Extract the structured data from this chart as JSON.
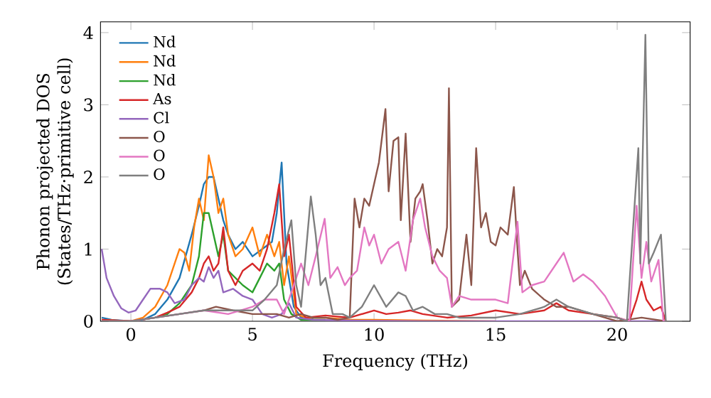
{
  "chart_data": {
    "type": "line",
    "xlabel": "Frequency (THz)",
    "ylabel": "Phonon projected DOS (States/THz·primitive cell)",
    "xlim": [
      -1.25,
      23
    ],
    "ylim": [
      0,
      4.15
    ],
    "xticks": [
      0,
      5,
      10,
      15,
      20
    ],
    "yticks": [
      0,
      1,
      2,
      3,
      4
    ],
    "grid": false,
    "legend": "top left",
    "marker": "none",
    "line_style": "solid",
    "series": [
      {
        "name": "Nd",
        "color": "#1f77b4",
        "x": [
          -1.2,
          -0.8,
          0,
          0.5,
          1.0,
          1.5,
          2.0,
          2.5,
          2.8,
          3.0,
          3.2,
          3.4,
          3.6,
          3.8,
          4.0,
          4.3,
          4.6,
          5.0,
          5.4,
          5.8,
          6.0,
          6.2,
          6.4,
          6.7,
          7.0,
          7.5
        ],
        "values": [
          0.05,
          0.02,
          0.0,
          0.02,
          0.1,
          0.3,
          0.6,
          1.2,
          1.6,
          1.9,
          2.0,
          2.0,
          1.7,
          1.4,
          1.2,
          1.0,
          1.1,
          0.9,
          1.0,
          1.1,
          1.5,
          2.2,
          0.8,
          0.2,
          0.05,
          0.03
        ]
      },
      {
        "name": "Nd",
        "color": "#ff7f0e",
        "x": [
          -1.2,
          0,
          0.5,
          1.0,
          1.5,
          2.0,
          2.2,
          2.4,
          2.6,
          2.8,
          3.0,
          3.2,
          3.4,
          3.6,
          3.8,
          4.0,
          4.3,
          4.6,
          5.0,
          5.3,
          5.6,
          5.9,
          6.1,
          6.3,
          6.5,
          6.8,
          7.2,
          8,
          9,
          10,
          12,
          15
        ],
        "values": [
          0.02,
          0.0,
          0.05,
          0.2,
          0.5,
          1.0,
          0.95,
          0.7,
          1.3,
          1.7,
          1.4,
          2.3,
          2.0,
          1.5,
          1.7,
          1.2,
          0.9,
          1.0,
          1.3,
          0.9,
          1.2,
          0.9,
          1.1,
          0.5,
          0.9,
          0.1,
          0.05,
          0.05,
          0.02,
          0.02,
          0.01,
          0.0
        ]
      },
      {
        "name": "Nd",
        "color": "#2ca02c",
        "x": [
          1,
          1.5,
          2.0,
          2.5,
          2.8,
          3.0,
          3.2,
          3.4,
          3.6,
          3.8,
          4.0,
          4.3,
          4.6,
          5.0,
          5.3,
          5.6,
          5.9,
          6.1,
          6.3,
          6.6,
          7,
          8
        ],
        "values": [
          0.05,
          0.1,
          0.25,
          0.5,
          0.9,
          1.5,
          1.5,
          1.2,
          0.9,
          1.2,
          0.7,
          0.6,
          0.5,
          0.4,
          0.6,
          0.8,
          0.7,
          0.8,
          0.3,
          0.1,
          0.02,
          0.02
        ]
      },
      {
        "name": "As",
        "color": "#d62728",
        "x": [
          -1.2,
          0,
          1,
          1.5,
          2.0,
          2.5,
          2.8,
          3.0,
          3.2,
          3.4,
          3.6,
          3.8,
          4.0,
          4.3,
          4.6,
          5.0,
          5.3,
          5.6,
          5.9,
          6.1,
          6.3,
          6.5,
          6.8,
          7.2,
          8,
          9,
          10,
          10.5,
          11,
          11.5,
          12,
          13,
          14,
          15,
          16,
          17,
          17.5,
          18,
          19,
          20,
          20.5,
          20.8,
          21.0,
          21.2,
          21.5,
          21.8,
          22
        ],
        "values": [
          0.02,
          0.0,
          0.05,
          0.12,
          0.2,
          0.4,
          0.6,
          0.8,
          0.9,
          0.7,
          0.8,
          1.3,
          0.7,
          0.5,
          0.7,
          0.8,
          0.7,
          1.0,
          1.5,
          1.9,
          0.9,
          1.2,
          0.2,
          0.05,
          0.08,
          0.05,
          0.15,
          0.1,
          0.12,
          0.15,
          0.1,
          0.05,
          0.08,
          0.15,
          0.1,
          0.15,
          0.25,
          0.15,
          0.1,
          0.05,
          0.0,
          0.3,
          0.55,
          0.3,
          0.15,
          0.2,
          0.0
        ]
      },
      {
        "name": "Cl",
        "color": "#9467bd",
        "x": [
          -1.2,
          -1.0,
          -0.7,
          -0.4,
          -0.1,
          0.2,
          0.5,
          0.8,
          1.2,
          1.5,
          1.8,
          2.2,
          2.5,
          2.8,
          3.0,
          3.2,
          3.4,
          3.6,
          3.8,
          4.2,
          4.6,
          5.0,
          5.4,
          5.8,
          6.2,
          6.5,
          6.8,
          7.5,
          9,
          12,
          22
        ],
        "values": [
          1.0,
          0.6,
          0.35,
          0.18,
          0.12,
          0.15,
          0.3,
          0.45,
          0.45,
          0.4,
          0.25,
          0.3,
          0.5,
          0.6,
          0.55,
          0.75,
          0.6,
          0.7,
          0.4,
          0.45,
          0.35,
          0.3,
          0.1,
          0.05,
          0.1,
          0.25,
          0.05,
          0.02,
          0.01,
          0.0,
          0.0
        ]
      },
      {
        "name": "O",
        "color": "#8c564b",
        "x": [
          -1.2,
          0,
          1,
          2,
          3,
          3.5,
          4.2,
          5,
          5.5,
          6,
          6.5,
          7,
          7.5,
          8.0,
          8.5,
          9.0,
          9.2,
          9.4,
          9.6,
          9.8,
          10.0,
          10.2,
          10.47,
          10.6,
          10.8,
          11.0,
          11.1,
          11.3,
          11.5,
          11.7,
          11.9,
          12.0,
          12.2,
          12.4,
          12.6,
          12.8,
          13.0,
          13.08,
          13.2,
          13.5,
          13.8,
          14.0,
          14.2,
          14.4,
          14.6,
          14.8,
          15.0,
          15.2,
          15.5,
          15.75,
          15.9,
          16.0,
          16.2,
          16.5,
          17,
          17.5,
          18,
          18.5,
          19,
          19.5,
          20,
          21,
          22
        ],
        "values": [
          0.0,
          0.0,
          0.05,
          0.1,
          0.15,
          0.2,
          0.15,
          0.1,
          0.1,
          0.1,
          0.05,
          0.1,
          0.05,
          0.05,
          0.02,
          0.05,
          1.7,
          1.3,
          1.7,
          1.6,
          1.9,
          2.2,
          2.94,
          1.8,
          2.5,
          2.55,
          1.4,
          2.6,
          1.1,
          1.7,
          1.8,
          1.9,
          1.4,
          0.8,
          1.0,
          0.9,
          1.3,
          3.23,
          0.2,
          0.3,
          1.2,
          0.5,
          2.4,
          1.3,
          1.5,
          1.1,
          1.05,
          1.3,
          1.2,
          1.86,
          1.0,
          0.5,
          0.7,
          0.45,
          0.3,
          0.2,
          0.2,
          0.15,
          0.1,
          0.05,
          0.0,
          0.05,
          0.0
        ]
      },
      {
        "name": "O",
        "color": "#e377c2",
        "x": [
          -1.2,
          0,
          1,
          2,
          3,
          4,
          4.5,
          5.0,
          5.5,
          6,
          6.3,
          6.6,
          7.0,
          7.3,
          7.6,
          7.97,
          8.2,
          8.5,
          8.8,
          9.0,
          9.3,
          9.6,
          9.8,
          10.0,
          10.3,
          10.6,
          11.0,
          11.3,
          11.6,
          11.9,
          12.1,
          12.4,
          12.7,
          13.0,
          13.2,
          13.5,
          14.0,
          14.5,
          15.0,
          15.5,
          15.9,
          16.1,
          16.5,
          17,
          17.5,
          17.8,
          18.2,
          18.6,
          19.0,
          19.5,
          20,
          20.5,
          20.8,
          21.0,
          21.2,
          21.4,
          21.7,
          21.9,
          22
        ],
        "values": [
          0.0,
          0.0,
          0.05,
          0.1,
          0.15,
          0.1,
          0.15,
          0.2,
          0.3,
          0.3,
          0.1,
          0.4,
          0.8,
          0.5,
          0.9,
          1.42,
          0.6,
          0.75,
          0.5,
          0.6,
          0.7,
          1.3,
          1.05,
          1.2,
          0.8,
          1.0,
          1.1,
          0.7,
          1.4,
          1.7,
          1.3,
          0.9,
          0.7,
          0.6,
          0.2,
          0.35,
          0.3,
          0.3,
          0.3,
          0.25,
          1.38,
          0.4,
          0.5,
          0.55,
          0.8,
          0.95,
          0.55,
          0.65,
          0.55,
          0.35,
          0.05,
          0.0,
          1.6,
          0.6,
          1.1,
          0.55,
          0.85,
          0.0,
          0.0
        ]
      },
      {
        "name": "O",
        "color": "#7f7f7f",
        "x": [
          -1.2,
          0,
          1,
          2,
          3,
          4,
          5,
          5.5,
          6.0,
          6.3,
          6.6,
          6.8,
          7.0,
          7.4,
          7.6,
          7.8,
          8.0,
          8.3,
          8.7,
          9.0,
          9.5,
          10.0,
          10.5,
          11.0,
          11.3,
          11.6,
          12,
          12.5,
          13,
          13.5,
          14,
          15,
          16,
          17,
          17.5,
          18,
          19,
          20,
          20.4,
          20.87,
          20.95,
          21.16,
          21.3,
          21.5,
          21.8,
          22
        ],
        "values": [
          0.0,
          0.0,
          0.05,
          0.1,
          0.15,
          0.15,
          0.15,
          0.3,
          0.5,
          1.0,
          1.4,
          0.5,
          0.2,
          1.73,
          1.2,
          0.5,
          0.6,
          0.1,
          0.1,
          0.05,
          0.2,
          0.5,
          0.2,
          0.4,
          0.35,
          0.15,
          0.2,
          0.1,
          0.1,
          0.05,
          0.05,
          0.05,
          0.1,
          0.2,
          0.3,
          0.2,
          0.1,
          0.05,
          0.0,
          2.4,
          0.8,
          3.97,
          0.8,
          0.95,
          1.2,
          0.0
        ]
      }
    ]
  }
}
